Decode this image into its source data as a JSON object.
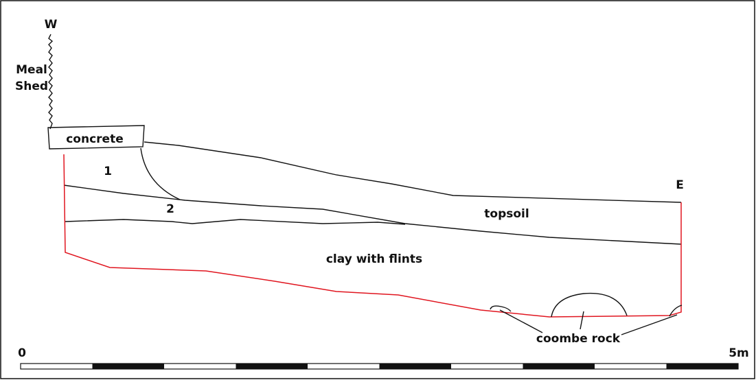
{
  "labels": {
    "west": "W",
    "east": "E",
    "building_line1": "Meal",
    "building_line2": "Shed",
    "concrete": "concrete",
    "layer1": "1",
    "layer2": "2",
    "topsoil": "topsoil",
    "clay": "clay with flints",
    "coombe": "coombe rock"
  },
  "scale": {
    "start": "0",
    "end": "5m"
  }
}
